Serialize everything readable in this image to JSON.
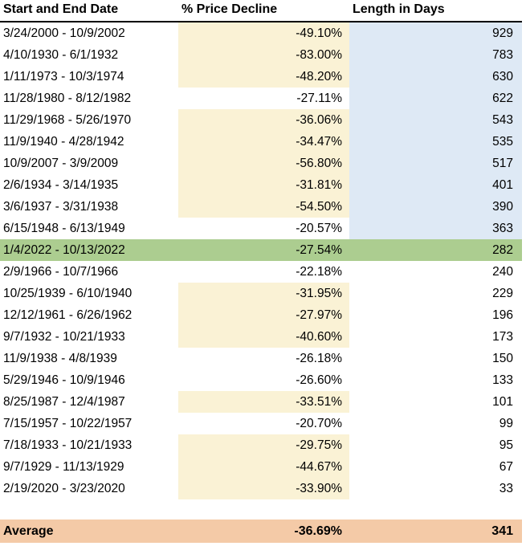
{
  "table": {
    "columns": [
      "Start and End Date",
      "% Price Decline",
      "Length in Days"
    ],
    "rows": [
      {
        "date_range": "3/24/2000 - 10/9/2002",
        "decline": "-49.10%",
        "days": "929",
        "decline_hl": true,
        "days_hl": true,
        "row_hl": false
      },
      {
        "date_range": "4/10/1930 - 6/1/1932",
        "decline": "-83.00%",
        "days": "783",
        "decline_hl": true,
        "days_hl": true,
        "row_hl": false
      },
      {
        "date_range": "1/11/1973 - 10/3/1974",
        "decline": "-48.20%",
        "days": "630",
        "decline_hl": true,
        "days_hl": true,
        "row_hl": false
      },
      {
        "date_range": "11/28/1980 - 8/12/1982",
        "decline": "-27.11%",
        "days": "622",
        "decline_hl": false,
        "days_hl": true,
        "row_hl": false
      },
      {
        "date_range": "11/29/1968 - 5/26/1970",
        "decline": "-36.06%",
        "days": "543",
        "decline_hl": true,
        "days_hl": true,
        "row_hl": false
      },
      {
        "date_range": "11/9/1940 - 4/28/1942",
        "decline": "-34.47%",
        "days": "535",
        "decline_hl": true,
        "days_hl": true,
        "row_hl": false
      },
      {
        "date_range": "10/9/2007 - 3/9/2009",
        "decline": "-56.80%",
        "days": "517",
        "decline_hl": true,
        "days_hl": true,
        "row_hl": false
      },
      {
        "date_range": "2/6/1934 - 3/14/1935",
        "decline": "-31.81%",
        "days": "401",
        "decline_hl": true,
        "days_hl": true,
        "row_hl": false
      },
      {
        "date_range": "3/6/1937 - 3/31/1938",
        "decline": "-54.50%",
        "days": "390",
        "decline_hl": true,
        "days_hl": true,
        "row_hl": false
      },
      {
        "date_range": "6/15/1948 - 6/13/1949",
        "decline": "-20.57%",
        "days": "363",
        "decline_hl": false,
        "days_hl": true,
        "row_hl": false
      },
      {
        "date_range": "1/4/2022 - 10/13/2022",
        "decline": "-27.54%",
        "days": "282",
        "decline_hl": false,
        "days_hl": false,
        "row_hl": true
      },
      {
        "date_range": "2/9/1966 - 10/7/1966",
        "decline": "-22.18%",
        "days": "240",
        "decline_hl": false,
        "days_hl": false,
        "row_hl": false
      },
      {
        "date_range": "10/25/1939 - 6/10/1940",
        "decline": "-31.95%",
        "days": "229",
        "decline_hl": true,
        "days_hl": false,
        "row_hl": false
      },
      {
        "date_range": "12/12/1961 - 6/26/1962",
        "decline": "-27.97%",
        "days": "196",
        "decline_hl": true,
        "days_hl": false,
        "row_hl": false
      },
      {
        "date_range": "9/7/1932 - 10/21/1933",
        "decline": "-40.60%",
        "days": "173",
        "decline_hl": true,
        "days_hl": false,
        "row_hl": false
      },
      {
        "date_range": "11/9/1938 - 4/8/1939",
        "decline": "-26.18%",
        "days": "150",
        "decline_hl": false,
        "days_hl": false,
        "row_hl": false
      },
      {
        "date_range": "5/29/1946 - 10/9/1946",
        "decline": "-26.60%",
        "days": "133",
        "decline_hl": false,
        "days_hl": false,
        "row_hl": false
      },
      {
        "date_range": "8/25/1987 - 12/4/1987",
        "decline": "-33.51%",
        "days": "101",
        "decline_hl": true,
        "days_hl": false,
        "row_hl": false
      },
      {
        "date_range": "7/15/1957 - 10/22/1957",
        "decline": "-20.70%",
        "days": "99",
        "decline_hl": false,
        "days_hl": false,
        "row_hl": false
      },
      {
        "date_range": "7/18/1933 - 10/21/1933",
        "decline": "-29.75%",
        "days": "95",
        "decline_hl": true,
        "days_hl": false,
        "row_hl": false
      },
      {
        "date_range": "9/7/1929 - 11/13/1929",
        "decline": "-44.67%",
        "days": "67",
        "decline_hl": true,
        "days_hl": false,
        "row_hl": false
      },
      {
        "date_range": "2/19/2020 - 3/23/2020",
        "decline": "-33.90%",
        "days": "33",
        "decline_hl": true,
        "days_hl": false,
        "row_hl": false
      }
    ],
    "average": {
      "label": "Average",
      "decline": "-36.69%",
      "days": "341"
    }
  },
  "colors": {
    "decline_highlight": "#FAF2D5",
    "days_highlight": "#DEE9F5",
    "current_row_highlight": "#ACCD90",
    "average_row": "#F4CAA7",
    "text": "#000000",
    "header_rule": "#000000"
  },
  "chart_data": {
    "type": "table",
    "title": "Bear market declines: start/end dates, % price decline, length in days",
    "columns": [
      "Start and End Date",
      "% Price Decline",
      "Length in Days"
    ],
    "rows": [
      [
        "3/24/2000 - 10/9/2002",
        -49.1,
        929
      ],
      [
        "4/10/1930 - 6/1/1932",
        -83.0,
        783
      ],
      [
        "1/11/1973 - 10/3/1974",
        -48.2,
        630
      ],
      [
        "11/28/1980 - 8/12/1982",
        -27.11,
        622
      ],
      [
        "11/29/1968 - 5/26/1970",
        -36.06,
        543
      ],
      [
        "11/9/1940 - 4/28/1942",
        -34.47,
        535
      ],
      [
        "10/9/2007 - 3/9/2009",
        -56.8,
        517
      ],
      [
        "2/6/1934 - 3/14/1935",
        -31.81,
        401
      ],
      [
        "3/6/1937 - 3/31/1938",
        -54.5,
        390
      ],
      [
        "6/15/1948 - 6/13/1949",
        -20.57,
        363
      ],
      [
        "1/4/2022 - 10/13/2022",
        -27.54,
        282
      ],
      [
        "2/9/1966 - 10/7/1966",
        -22.18,
        240
      ],
      [
        "10/25/1939 - 6/10/1940",
        -31.95,
        229
      ],
      [
        "12/12/1961 - 6/26/1962",
        -27.97,
        196
      ],
      [
        "9/7/1932 - 10/21/1933",
        -40.6,
        173
      ],
      [
        "11/9/1938 - 4/8/1939",
        -26.18,
        150
      ],
      [
        "5/29/1946 - 10/9/1946",
        -26.6,
        133
      ],
      [
        "8/25/1987 - 12/4/1987",
        -33.51,
        101
      ],
      [
        "7/15/1957 - 10/22/1957",
        -20.7,
        99
      ],
      [
        "7/18/1933 - 10/21/1933",
        -29.75,
        95
      ],
      [
        "9/7/1929 - 11/13/1929",
        -44.67,
        67
      ],
      [
        "2/19/2020 - 3/23/2020",
        -33.9,
        33
      ]
    ],
    "summary_row": [
      "Average",
      -36.69,
      341
    ],
    "highlighted_row": "1/4/2022 - 10/13/2022",
    "layout_hints": {
      "decline_column_highlighted_when": "decline worse than -27.54%",
      "days_column_highlighted_when": "length greater than 282 days"
    }
  }
}
